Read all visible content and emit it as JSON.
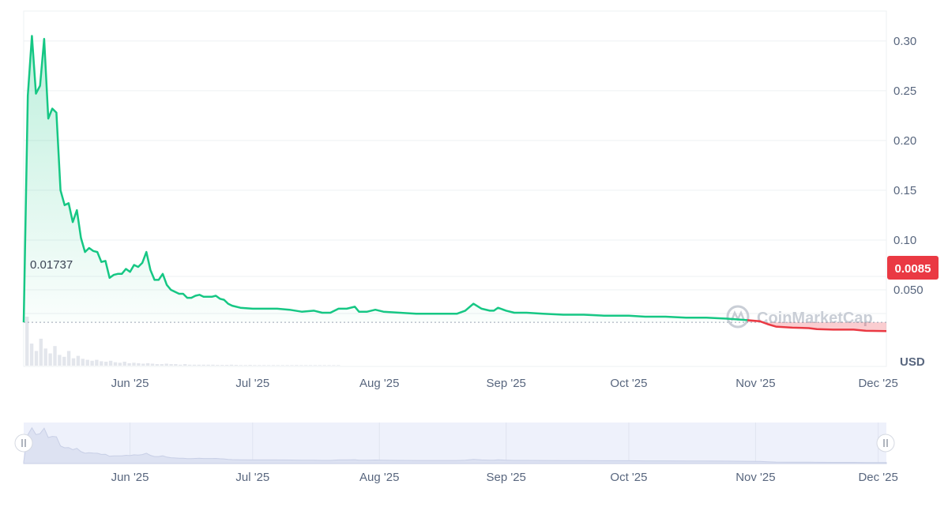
{
  "chart_data": {
    "type": "area",
    "currency_label": "USD",
    "watermark": "CoinMarketCap",
    "start_price_label": "0.01737",
    "current_price_label": "0.0085",
    "ylim": [
      0,
      0.33
    ],
    "y_ticks": [
      0.3,
      0.25,
      0.2,
      0.15,
      0.1,
      0.05
    ],
    "y_tick_labels": [
      "0.30",
      "0.25",
      "0.20",
      "0.15",
      "0.10",
      "0.050"
    ],
    "x_start": "2025-05-06",
    "x_end": "2025-12-03",
    "x_tick_labels": [
      {
        "date": "2025-06-01",
        "label": "Jun '25"
      },
      {
        "date": "2025-07-01",
        "label": "Jul '25"
      },
      {
        "date": "2025-08-01",
        "label": "Aug '25"
      },
      {
        "date": "2025-09-01",
        "label": "Sep '25"
      },
      {
        "date": "2025-10-01",
        "label": "Oct '25"
      },
      {
        "date": "2025-11-01",
        "label": "Nov '25"
      },
      {
        "date": "2025-12-01",
        "label": "Dec '25"
      }
    ],
    "colors": {
      "up": "#16c784",
      "down": "#ea3943"
    },
    "series": [
      {
        "values": [
          [
            "2025-05-06",
            0.0174
          ],
          [
            "2025-05-07",
            0.245
          ],
          [
            "2025-05-08",
            0.305
          ],
          [
            "2025-05-09",
            0.247
          ],
          [
            "2025-05-10",
            0.255
          ],
          [
            "2025-05-11",
            0.302
          ],
          [
            "2025-05-12",
            0.222
          ],
          [
            "2025-05-13",
            0.232
          ],
          [
            "2025-05-14",
            0.228
          ],
          [
            "2025-05-15",
            0.15
          ],
          [
            "2025-05-16",
            0.135
          ],
          [
            "2025-05-17",
            0.137
          ],
          [
            "2025-05-18",
            0.118
          ],
          [
            "2025-05-19",
            0.13
          ],
          [
            "2025-05-20",
            0.102
          ],
          [
            "2025-05-21",
            0.088
          ],
          [
            "2025-05-22",
            0.092
          ],
          [
            "2025-05-23",
            0.089
          ],
          [
            "2025-05-24",
            0.088
          ],
          [
            "2025-05-25",
            0.078
          ],
          [
            "2025-05-26",
            0.079
          ],
          [
            "2025-05-27",
            0.062
          ],
          [
            "2025-05-28",
            0.065
          ],
          [
            "2025-05-29",
            0.066
          ],
          [
            "2025-05-30",
            0.066
          ],
          [
            "2025-05-31",
            0.071
          ],
          [
            "2025-06-01",
            0.068
          ],
          [
            "2025-06-02",
            0.075
          ],
          [
            "2025-06-03",
            0.073
          ],
          [
            "2025-06-04",
            0.077
          ],
          [
            "2025-06-05",
            0.088
          ],
          [
            "2025-06-06",
            0.07
          ],
          [
            "2025-06-07",
            0.06
          ],
          [
            "2025-06-08",
            0.06
          ],
          [
            "2025-06-09",
            0.066
          ],
          [
            "2025-06-10",
            0.055
          ],
          [
            "2025-06-11",
            0.05
          ],
          [
            "2025-06-12",
            0.048
          ],
          [
            "2025-06-13",
            0.046
          ],
          [
            "2025-06-14",
            0.046
          ],
          [
            "2025-06-15",
            0.042
          ],
          [
            "2025-06-16",
            0.042
          ],
          [
            "2025-06-17",
            0.044
          ],
          [
            "2025-06-18",
            0.045
          ],
          [
            "2025-06-19",
            0.043
          ],
          [
            "2025-06-20",
            0.043
          ],
          [
            "2025-06-21",
            0.043
          ],
          [
            "2025-06-22",
            0.044
          ],
          [
            "2025-06-23",
            0.041
          ],
          [
            "2025-06-24",
            0.04
          ],
          [
            "2025-06-25",
            0.036
          ],
          [
            "2025-06-26",
            0.034
          ],
          [
            "2025-06-28",
            0.032
          ],
          [
            "2025-07-01",
            0.031
          ],
          [
            "2025-07-04",
            0.031
          ],
          [
            "2025-07-07",
            0.031
          ],
          [
            "2025-07-10",
            0.03
          ],
          [
            "2025-07-13",
            0.028
          ],
          [
            "2025-07-16",
            0.029
          ],
          [
            "2025-07-18",
            0.027
          ],
          [
            "2025-07-20",
            0.027
          ],
          [
            "2025-07-22",
            0.031
          ],
          [
            "2025-07-24",
            0.031
          ],
          [
            "2025-07-26",
            0.033
          ],
          [
            "2025-07-27",
            0.028
          ],
          [
            "2025-07-29",
            0.028
          ],
          [
            "2025-07-31",
            0.03
          ],
          [
            "2025-08-02",
            0.028
          ],
          [
            "2025-08-06",
            0.027
          ],
          [
            "2025-08-10",
            0.026
          ],
          [
            "2025-08-14",
            0.026
          ],
          [
            "2025-08-18",
            0.026
          ],
          [
            "2025-08-20",
            0.026
          ],
          [
            "2025-08-22",
            0.029
          ],
          [
            "2025-08-24",
            0.036
          ],
          [
            "2025-08-26",
            0.031
          ],
          [
            "2025-08-28",
            0.029
          ],
          [
            "2025-08-29",
            0.029
          ],
          [
            "2025-08-30",
            0.032
          ],
          [
            "2025-09-01",
            0.029
          ],
          [
            "2025-09-03",
            0.027
          ],
          [
            "2025-09-06",
            0.027
          ],
          [
            "2025-09-10",
            0.026
          ],
          [
            "2025-09-15",
            0.025
          ],
          [
            "2025-09-20",
            0.025
          ],
          [
            "2025-09-25",
            0.024
          ],
          [
            "2025-10-01",
            0.024
          ],
          [
            "2025-10-05",
            0.023
          ],
          [
            "2025-10-10",
            0.023
          ],
          [
            "2025-10-15",
            0.022
          ],
          [
            "2025-10-20",
            0.022
          ],
          [
            "2025-10-25",
            0.021
          ],
          [
            "2025-10-30",
            0.0195
          ]
        ]
      },
      {
        "values": [
          [
            "2025-10-30",
            0.0195
          ],
          [
            "2025-11-02",
            0.0185
          ],
          [
            "2025-11-04",
            0.0155
          ],
          [
            "2025-11-06",
            0.013
          ],
          [
            "2025-11-10",
            0.012
          ],
          [
            "2025-11-14",
            0.0115
          ],
          [
            "2025-11-16",
            0.0105
          ],
          [
            "2025-11-20",
            0.01
          ],
          [
            "2025-11-25",
            0.01
          ],
          [
            "2025-11-28",
            0.0088
          ],
          [
            "2025-12-03",
            0.0085
          ]
        ]
      }
    ],
    "volume_relative": [
      1.0,
      0.45,
      0.3,
      0.55,
      0.35,
      0.25,
      0.4,
      0.22,
      0.18,
      0.3,
      0.15,
      0.2,
      0.14,
      0.12,
      0.1,
      0.12,
      0.09,
      0.08,
      0.1,
      0.07,
      0.06,
      0.08,
      0.05,
      0.06,
      0.05,
      0.04,
      0.05,
      0.04,
      0.03,
      0.03,
      0.04,
      0.03,
      0.03,
      0.02,
      0.03,
      0.02,
      0.02,
      0.02,
      0.02,
      0.02,
      0.02,
      0.015,
      0.015,
      0.015,
      0.02,
      0.015,
      0.012,
      0.012,
      0.015,
      0.012,
      0.012,
      0.012,
      0.01,
      0.012,
      0.01,
      0.01,
      0.01,
      0.01,
      0.012,
      0.01,
      0.01,
      0.01,
      0.01,
      0.01,
      0.01,
      0.01,
      0.01,
      0.01
    ]
  }
}
